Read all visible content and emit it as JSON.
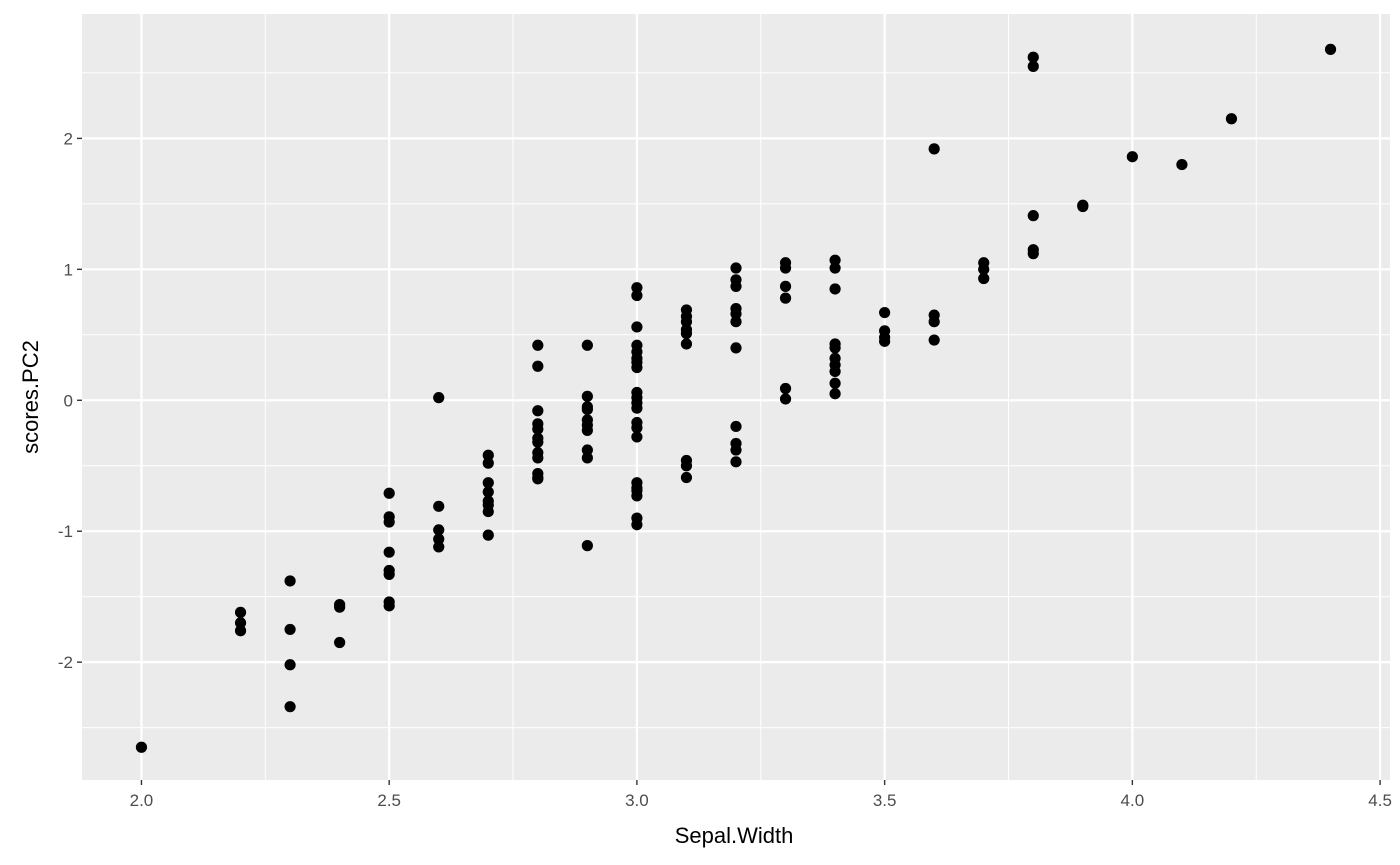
{
  "chart_data": {
    "type": "scatter",
    "title": "",
    "xlabel": "Sepal.Width",
    "ylabel": "scores.PC2",
    "xlim": [
      1.88,
      4.52
    ],
    "ylim": [
      -2.9,
      2.95
    ],
    "x_ticks": [
      2.0,
      2.5,
      3.0,
      3.5,
      4.0,
      4.5
    ],
    "x_tick_labels": [
      "2.0",
      "2.5",
      "3.0",
      "3.5",
      "4.0",
      "4.5"
    ],
    "y_ticks": [
      -2,
      -1,
      0,
      1,
      2
    ],
    "y_tick_labels": [
      "-2",
      "-1",
      "0",
      "1",
      "2"
    ],
    "grid": true,
    "colors": {
      "panel": "#ebebeb",
      "grid": "#ffffff",
      "point": "#000000",
      "tick": "#333333"
    },
    "series": [
      {
        "points": [
          [
            2.0,
            -2.65
          ],
          [
            2.2,
            -1.62
          ],
          [
            2.2,
            -1.7
          ],
          [
            2.2,
            -1.76
          ],
          [
            2.3,
            -1.38
          ],
          [
            2.3,
            -1.75
          ],
          [
            2.3,
            -2.02
          ],
          [
            2.3,
            -2.34
          ],
          [
            2.4,
            -1.56
          ],
          [
            2.4,
            -1.58
          ],
          [
            2.4,
            -1.85
          ],
          [
            2.5,
            -0.71
          ],
          [
            2.5,
            -0.89
          ],
          [
            2.5,
            -0.93
          ],
          [
            2.5,
            -1.16
          ],
          [
            2.5,
            -1.3
          ],
          [
            2.5,
            -1.33
          ],
          [
            2.5,
            -1.54
          ],
          [
            2.5,
            -1.57
          ],
          [
            2.6,
            0.02
          ],
          [
            2.6,
            -0.81
          ],
          [
            2.6,
            -0.99
          ],
          [
            2.6,
            -1.06
          ],
          [
            2.6,
            -1.12
          ],
          [
            2.7,
            -0.42
          ],
          [
            2.7,
            -0.48
          ],
          [
            2.7,
            -0.63
          ],
          [
            2.7,
            -0.7
          ],
          [
            2.7,
            -0.77
          ],
          [
            2.7,
            -0.8
          ],
          [
            2.7,
            -0.85
          ],
          [
            2.7,
            -1.03
          ],
          [
            2.8,
            0.42
          ],
          [
            2.8,
            0.26
          ],
          [
            2.8,
            -0.08
          ],
          [
            2.8,
            -0.18
          ],
          [
            2.8,
            -0.22
          ],
          [
            2.8,
            -0.29
          ],
          [
            2.8,
            -0.32
          ],
          [
            2.8,
            -0.4
          ],
          [
            2.8,
            -0.44
          ],
          [
            2.8,
            -0.56
          ],
          [
            2.8,
            -0.59
          ],
          [
            2.8,
            -0.6
          ],
          [
            2.9,
            0.42
          ],
          [
            2.9,
            0.03
          ],
          [
            2.9,
            -0.05
          ],
          [
            2.9,
            -0.07
          ],
          [
            2.9,
            -0.15
          ],
          [
            2.9,
            -0.19
          ],
          [
            2.9,
            -0.23
          ],
          [
            2.9,
            -0.38
          ],
          [
            2.9,
            -0.44
          ],
          [
            2.9,
            -1.11
          ],
          [
            3.0,
            0.86
          ],
          [
            3.0,
            0.8
          ],
          [
            3.0,
            0.56
          ],
          [
            3.0,
            0.42
          ],
          [
            3.0,
            0.37
          ],
          [
            3.0,
            0.32
          ],
          [
            3.0,
            0.29
          ],
          [
            3.0,
            0.25
          ],
          [
            3.0,
            0.06
          ],
          [
            3.0,
            0.02
          ],
          [
            3.0,
            -0.02
          ],
          [
            3.0,
            -0.06
          ],
          [
            3.0,
            -0.17
          ],
          [
            3.0,
            -0.21
          ],
          [
            3.0,
            -0.28
          ],
          [
            3.0,
            -0.63
          ],
          [
            3.0,
            -0.67
          ],
          [
            3.0,
            -0.69
          ],
          [
            3.0,
            -0.73
          ],
          [
            3.0,
            -0.9
          ],
          [
            3.0,
            -0.95
          ],
          [
            3.1,
            0.69
          ],
          [
            3.1,
            0.64
          ],
          [
            3.1,
            0.6
          ],
          [
            3.1,
            0.54
          ],
          [
            3.1,
            0.51
          ],
          [
            3.1,
            0.43
          ],
          [
            3.1,
            -0.46
          ],
          [
            3.1,
            -0.5
          ],
          [
            3.1,
            -0.59
          ],
          [
            3.2,
            1.01
          ],
          [
            3.2,
            0.92
          ],
          [
            3.2,
            0.87
          ],
          [
            3.2,
            0.7
          ],
          [
            3.2,
            0.66
          ],
          [
            3.2,
            0.6
          ],
          [
            3.2,
            0.4
          ],
          [
            3.2,
            -0.2
          ],
          [
            3.2,
            -0.33
          ],
          [
            3.2,
            -0.38
          ],
          [
            3.2,
            -0.47
          ],
          [
            3.3,
            1.05
          ],
          [
            3.3,
            1.01
          ],
          [
            3.3,
            0.87
          ],
          [
            3.3,
            0.78
          ],
          [
            3.3,
            0.09
          ],
          [
            3.3,
            0.01
          ],
          [
            3.4,
            1.07
          ],
          [
            3.4,
            1.01
          ],
          [
            3.4,
            0.85
          ],
          [
            3.4,
            0.43
          ],
          [
            3.4,
            0.4
          ],
          [
            3.4,
            0.32
          ],
          [
            3.4,
            0.27
          ],
          [
            3.4,
            0.22
          ],
          [
            3.4,
            0.13
          ],
          [
            3.4,
            0.05
          ],
          [
            3.5,
            0.67
          ],
          [
            3.5,
            0.53
          ],
          [
            3.5,
            0.48
          ],
          [
            3.5,
            0.45
          ],
          [
            3.6,
            1.92
          ],
          [
            3.6,
            0.65
          ],
          [
            3.6,
            0.6
          ],
          [
            3.6,
            0.46
          ],
          [
            3.7,
            1.05
          ],
          [
            3.7,
            1.0
          ],
          [
            3.7,
            0.93
          ],
          [
            3.8,
            2.62
          ],
          [
            3.8,
            2.55
          ],
          [
            3.8,
            1.41
          ],
          [
            3.8,
            1.15
          ],
          [
            3.8,
            1.12
          ],
          [
            3.9,
            1.49
          ],
          [
            3.9,
            1.48
          ],
          [
            4.0,
            1.86
          ],
          [
            4.1,
            1.8
          ],
          [
            4.2,
            2.15
          ],
          [
            4.4,
            2.68
          ]
        ]
      }
    ]
  }
}
